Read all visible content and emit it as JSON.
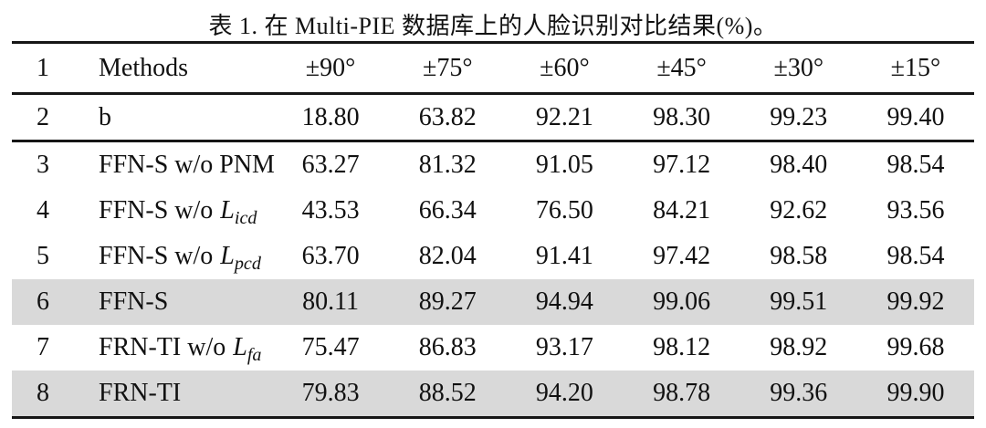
{
  "caption": "表 1. 在 Multi-PIE 数据库上的人脸识别对比结果(%)。",
  "table": {
    "highlight_color": "#d9d9d9",
    "header": {
      "num": "1",
      "method": {
        "text": "Methods"
      },
      "values": [
        "±90°",
        "±75°",
        "±60°",
        "±45°",
        "±30°",
        "±15°"
      ],
      "highlight": false
    },
    "baseline_rows": [
      {
        "num": "2",
        "method": {
          "text": "b"
        },
        "values": [
          "18.80",
          "63.82",
          "92.21",
          "98.30",
          "99.23",
          "99.40"
        ],
        "highlight": false
      }
    ],
    "body_rows": [
      {
        "num": "3",
        "method": {
          "text": "FFN-S w/o PNM"
        },
        "values": [
          "63.27",
          "81.32",
          "91.05",
          "97.12",
          "98.40",
          "98.54"
        ],
        "highlight": false
      },
      {
        "num": "4",
        "method": {
          "text": "FFN-S w/o",
          "math": "L",
          "sub": "icd"
        },
        "values": [
          "43.53",
          "66.34",
          "76.50",
          "84.21",
          "92.62",
          "93.56"
        ],
        "highlight": false
      },
      {
        "num": "5",
        "method": {
          "text": "FFN-S w/o",
          "math": "L",
          "sub": "pcd"
        },
        "values": [
          "63.70",
          "82.04",
          "91.41",
          "97.42",
          "98.58",
          "98.54"
        ],
        "highlight": false
      },
      {
        "num": "6",
        "method": {
          "text": "FFN-S"
        },
        "values": [
          "80.11",
          "89.27",
          "94.94",
          "99.06",
          "99.51",
          "99.92"
        ],
        "highlight": true
      },
      {
        "num": "7",
        "method": {
          "text": "FRN-TI w/o",
          "math": "L",
          "sub": "fa"
        },
        "values": [
          "75.47",
          "86.83",
          "93.17",
          "98.12",
          "98.92",
          "99.68"
        ],
        "highlight": false
      },
      {
        "num": "8",
        "method": {
          "text": "FRN-TI"
        },
        "values": [
          "79.83",
          "88.52",
          "94.20",
          "98.78",
          "99.36",
          "99.90"
        ],
        "highlight": true
      }
    ]
  }
}
